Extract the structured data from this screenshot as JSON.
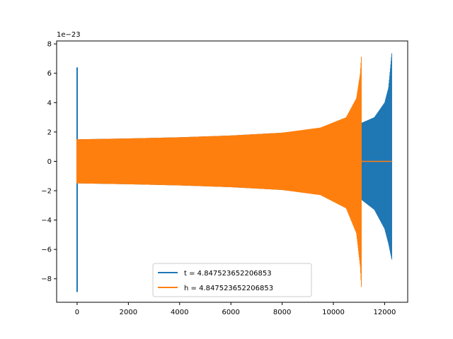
{
  "chart_data": {
    "type": "line",
    "title": "",
    "xlabel": "",
    "ylabel": "",
    "y_offset_label": "1e−23",
    "xlim": [
      -800,
      12900
    ],
    "ylim": [
      -9.6,
      8.2
    ],
    "x_ticks": [
      0,
      2000,
      4000,
      6000,
      8000,
      10000,
      12000
    ],
    "x_tick_labels": [
      "0",
      "2000",
      "4000",
      "6000",
      "8000",
      "10000",
      "12000"
    ],
    "y_ticks": [
      -8,
      -6,
      -4,
      -2,
      0,
      2,
      4,
      6,
      8
    ],
    "y_tick_labels": [
      "−8",
      "−6",
      "−4",
      "−2",
      "0",
      "2",
      "4",
      "6",
      "8"
    ],
    "grid": false,
    "legend_position": "lower center",
    "series": [
      {
        "name": "t = 4.847523652206853",
        "color": "#1f77b4",
        "envelope": {
          "spike_x": 0,
          "spike_range": [
            -8.9,
            6.4
          ],
          "upper": [
            [
              0,
              1.5
            ],
            [
              2000,
              1.56
            ],
            [
              4000,
              1.64
            ],
            [
              6000,
              1.76
            ],
            [
              8000,
              1.95
            ],
            [
              10000,
              2.35
            ],
            [
              11100,
              2.62
            ],
            [
              11600,
              3.0
            ],
            [
              12000,
              4.0
            ],
            [
              12150,
              5.0
            ],
            [
              12280,
              7.4
            ]
          ],
          "lower": [
            [
              0,
              -1.5
            ],
            [
              2000,
              -1.56
            ],
            [
              4000,
              -1.64
            ],
            [
              6000,
              -1.76
            ],
            [
              8000,
              -1.95
            ],
            [
              10000,
              -2.35
            ],
            [
              11100,
              -2.62
            ],
            [
              11600,
              -3.3
            ],
            [
              12000,
              -4.6
            ],
            [
              12150,
              -5.6
            ],
            [
              12280,
              -6.7
            ]
          ]
        }
      },
      {
        "name": "h = 4.847523652206853",
        "color": "#ff7f0e",
        "envelope": {
          "spike_x": 0,
          "spike_range": [
            -1.5,
            1.5
          ],
          "upper": [
            [
              0,
              1.5
            ],
            [
              2000,
              1.56
            ],
            [
              4000,
              1.64
            ],
            [
              6000,
              1.76
            ],
            [
              8000,
              1.95
            ],
            [
              9500,
              2.3
            ],
            [
              10500,
              3.0
            ],
            [
              10900,
              4.3
            ],
            [
              11050,
              6.0
            ],
            [
              11100,
              7.4
            ]
          ],
          "lower": [
            [
              0,
              -1.5
            ],
            [
              2000,
              -1.56
            ],
            [
              4000,
              -1.64
            ],
            [
              6000,
              -1.76
            ],
            [
              8000,
              -1.95
            ],
            [
              9500,
              -2.3
            ],
            [
              10500,
              -3.2
            ],
            [
              10900,
              -4.9
            ],
            [
              11050,
              -7.2
            ],
            [
              11100,
              -8.9
            ]
          ],
          "flat_after": [
            11100,
            12280
          ]
        }
      }
    ]
  }
}
